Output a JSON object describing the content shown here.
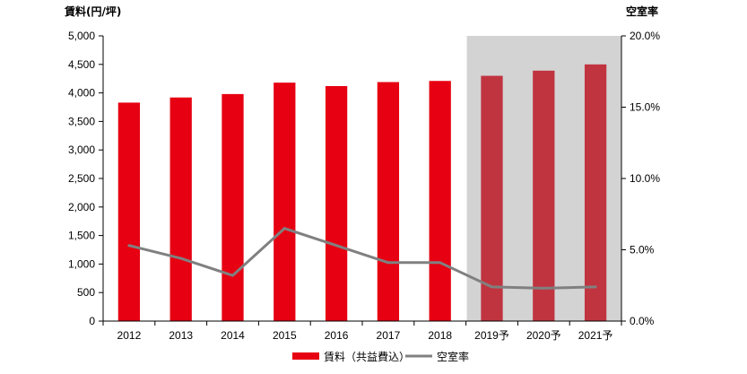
{
  "chart_data": {
    "type": "bar",
    "categories": [
      "2012",
      "2013",
      "2014",
      "2015",
      "2016",
      "2017",
      "2018",
      "2019予",
      "2020予",
      "2021予"
    ],
    "series": [
      {
        "name": "賃料（共益費込）",
        "type": "bar",
        "axis": "left",
        "color": "#e60012",
        "forecast_color": "#c0343f",
        "values": [
          3830,
          3920,
          3980,
          4180,
          4120,
          4190,
          4210,
          4300,
          4390,
          4500
        ]
      },
      {
        "name": "空室率",
        "type": "line",
        "axis": "right",
        "color": "#808080",
        "values": [
          5.3,
          4.4,
          3.2,
          6.5,
          5.3,
          4.1,
          4.1,
          2.4,
          2.3,
          2.4
        ]
      }
    ],
    "forecast_categories": [
      "2019予",
      "2020予",
      "2021予"
    ],
    "forecast_shade_color": "#d3d3d3",
    "y_left": {
      "label": "賃料(円/坪)",
      "min": 0,
      "max": 5000,
      "ticks": [
        0,
        500,
        1000,
        1500,
        2000,
        2500,
        3000,
        3500,
        4000,
        4500,
        5000
      ],
      "tick_labels": [
        "0",
        "500",
        "1,000",
        "1,500",
        "2,000",
        "2,500",
        "3,000",
        "3,500",
        "4,000",
        "4,500",
        "5,000"
      ]
    },
    "y_right": {
      "label": "空室率",
      "min": 0,
      "max": 20,
      "ticks": [
        0,
        5,
        10,
        15,
        20
      ],
      "tick_labels": [
        "0.0%",
        "5.0%",
        "10.0%",
        "15.0%",
        "20.0%"
      ]
    },
    "grid": false,
    "legend_position": "bottom-center",
    "legend": [
      "賃料（共益費込）",
      "空室率"
    ]
  }
}
